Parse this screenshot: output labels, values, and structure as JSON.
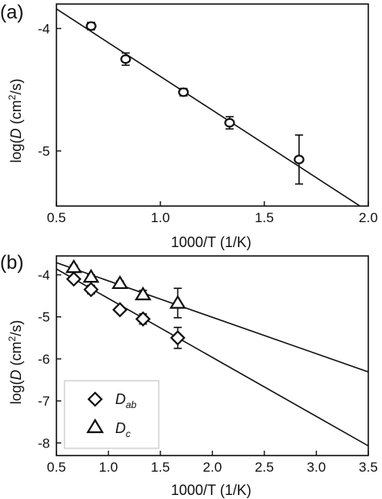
{
  "chart_data": [
    {
      "panel": "(a)",
      "type": "scatter",
      "xlim": [
        0.5,
        2.0
      ],
      "ylim": [
        -5.45,
        -3.8
      ],
      "xticks": [
        "0.5",
        "1.0",
        "1.5",
        "2.0"
      ],
      "yticks": [
        "-5",
        "-4"
      ],
      "xlabel": "1000/T (1/K)",
      "ylabel_prefix": "log(",
      "ylabel_italic": "D",
      "ylabel_unit": " (cm",
      "ylabel_sup": "2",
      "ylabel_suffix": "/s)",
      "grid": false,
      "legend": null,
      "series": [
        {
          "marker": "circle",
          "x": [
            0.667,
            0.833,
            1.111,
            1.333,
            1.667
          ],
          "y": [
            -3.98,
            -4.25,
            -4.52,
            -4.77,
            -5.07
          ],
          "yerr": [
            0.03,
            0.05,
            0.03,
            0.05,
            0.2
          ]
        }
      ],
      "fit_lines": [
        {
          "x": [
            0.5,
            1.96
          ],
          "y": [
            -3.84,
            -5.45
          ]
        }
      ]
    },
    {
      "panel": "(b)",
      "type": "scatter",
      "xlim": [
        0.5,
        3.5
      ],
      "ylim": [
        -8.3,
        -3.55
      ],
      "xticks": [
        "0.5",
        "1.0",
        "1.5",
        "2.0",
        "2.5",
        "3.0",
        "3.5"
      ],
      "yticks": [
        "-8",
        "-7",
        "-6",
        "-5",
        "-4"
      ],
      "xlabel": "1000/T (1/K)",
      "ylabel_prefix": "log(",
      "ylabel_italic": "D",
      "ylabel_unit": " (cm",
      "ylabel_sup": "2",
      "ylabel_suffix": "/s)",
      "grid": false,
      "legend": "bottom-left",
      "series": [
        {
          "legend_main": "D",
          "legend_sub": "ab",
          "marker": "diamond",
          "x": [
            0.667,
            0.833,
            1.111,
            1.333,
            1.667
          ],
          "y": [
            -4.1,
            -4.35,
            -4.83,
            -5.05,
            -5.5
          ],
          "yerr": [
            0.08,
            0.1,
            0.06,
            0.12,
            0.25
          ]
        },
        {
          "legend_main": "D",
          "legend_sub": "c",
          "marker": "triangle",
          "x": [
            0.667,
            0.833,
            1.111,
            1.333,
            1.667
          ],
          "y": [
            -3.82,
            -4.05,
            -4.2,
            -4.47,
            -4.67
          ],
          "yerr": [
            0.05,
            0.05,
            0.05,
            0.1,
            0.35
          ]
        }
      ],
      "fit_lines": [
        {
          "x": [
            0.5,
            3.5
          ],
          "y": [
            -3.86,
            -8.07
          ]
        },
        {
          "x": [
            0.5,
            3.5
          ],
          "y": [
            -3.71,
            -6.31
          ]
        }
      ]
    }
  ]
}
